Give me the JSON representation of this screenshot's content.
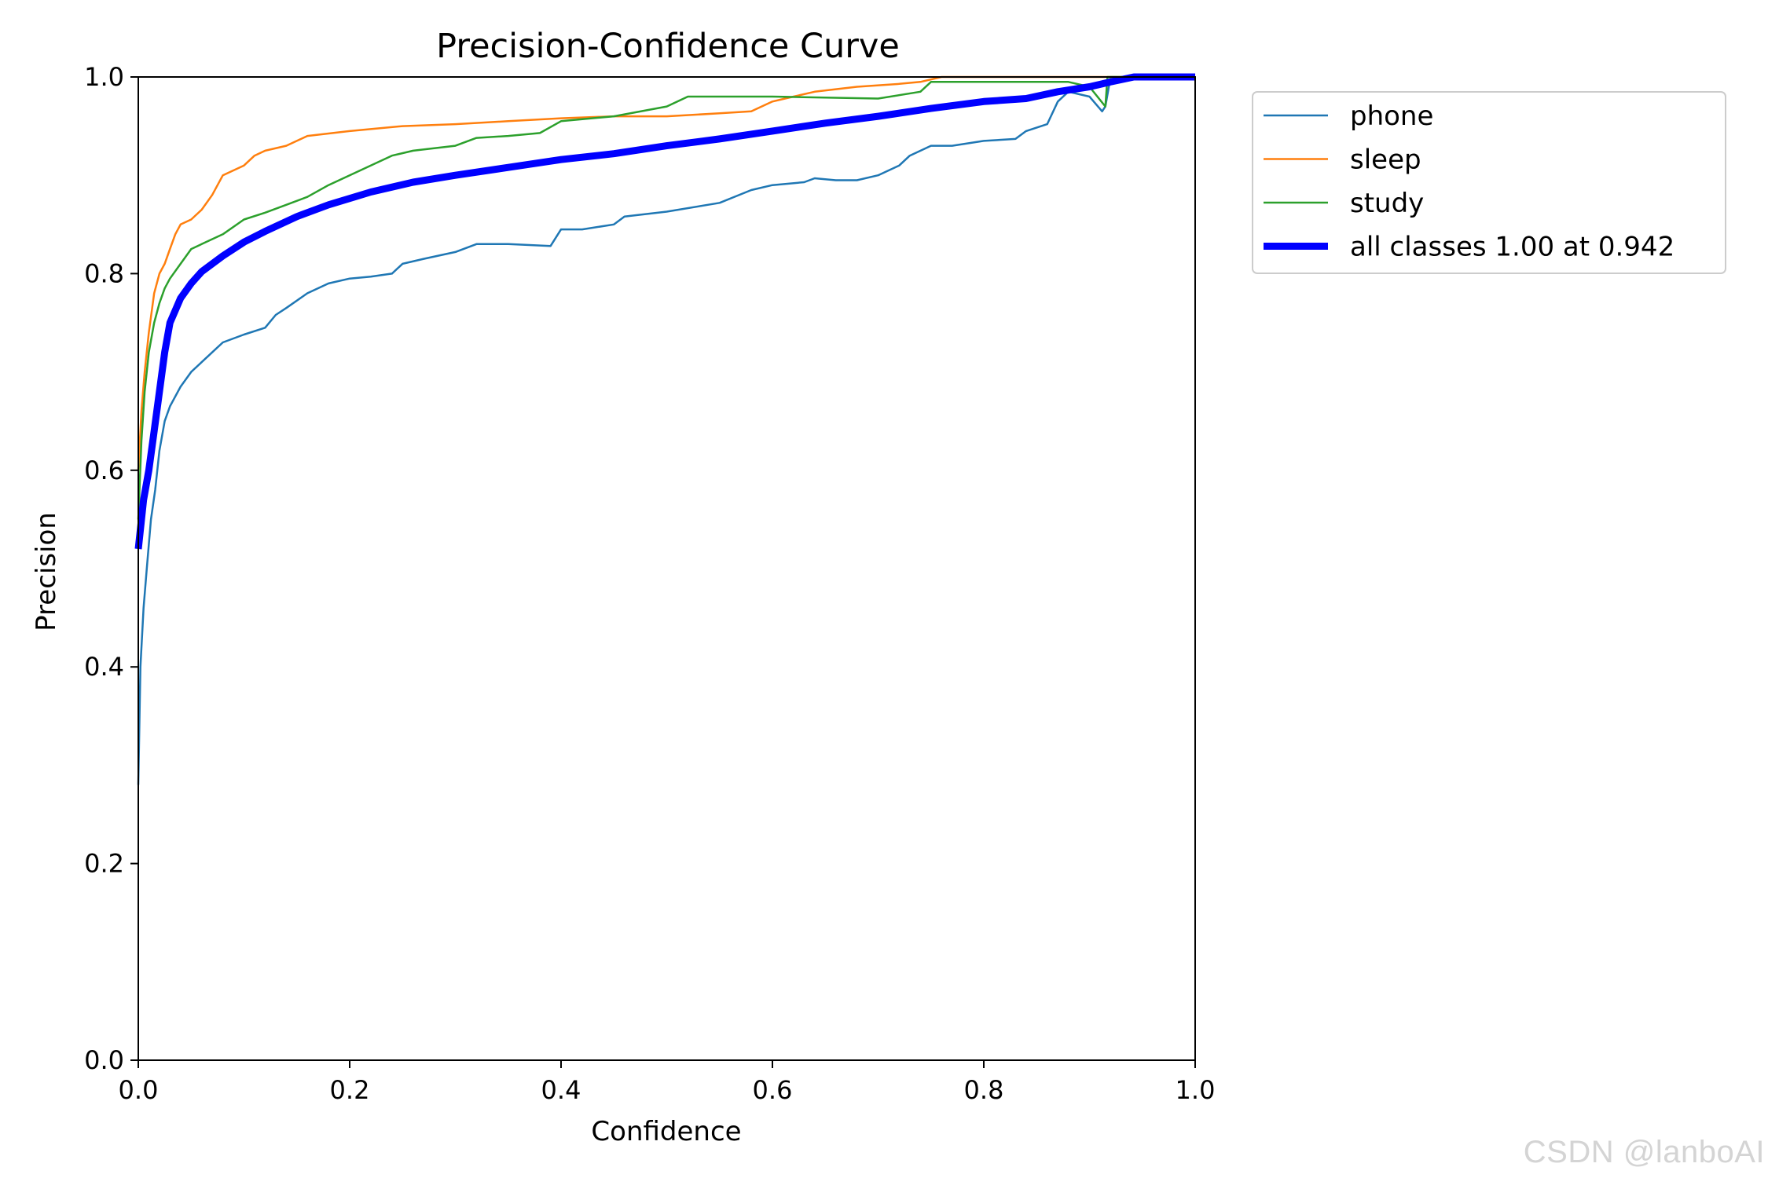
{
  "chart_data": {
    "type": "line",
    "title": "Precision-Confidence Curve",
    "xlabel": "Confidence",
    "ylabel": "Precision",
    "xlim": [
      0,
      1
    ],
    "ylim": [
      0,
      1
    ],
    "grid": false,
    "legend_position": "outside-top-right",
    "x_ticks": [
      0.0,
      0.2,
      0.4,
      0.6,
      0.8,
      1.0
    ],
    "x_tick_labels": [
      "0.0",
      "0.2",
      "0.4",
      "0.6",
      "0.8",
      "1.0"
    ],
    "y_ticks": [
      0.0,
      0.2,
      0.4,
      0.6,
      0.8,
      1.0
    ],
    "y_tick_labels": [
      "0.0",
      "0.2",
      "0.4",
      "0.6",
      "0.8",
      "1.0"
    ],
    "series": [
      {
        "name": "phone",
        "color": "#1f77b4",
        "weight": "thin",
        "points": [
          [
            0.0,
            0.28
          ],
          [
            0.002,
            0.4
          ],
          [
            0.005,
            0.46
          ],
          [
            0.008,
            0.5
          ],
          [
            0.012,
            0.55
          ],
          [
            0.016,
            0.58
          ],
          [
            0.02,
            0.62
          ],
          [
            0.025,
            0.65
          ],
          [
            0.03,
            0.665
          ],
          [
            0.04,
            0.685
          ],
          [
            0.05,
            0.7
          ],
          [
            0.06,
            0.71
          ],
          [
            0.07,
            0.72
          ],
          [
            0.08,
            0.73
          ],
          [
            0.1,
            0.738
          ],
          [
            0.12,
            0.745
          ],
          [
            0.13,
            0.758
          ],
          [
            0.14,
            0.765
          ],
          [
            0.16,
            0.78
          ],
          [
            0.18,
            0.79
          ],
          [
            0.2,
            0.795
          ],
          [
            0.22,
            0.797
          ],
          [
            0.24,
            0.8
          ],
          [
            0.25,
            0.81
          ],
          [
            0.27,
            0.815
          ],
          [
            0.3,
            0.822
          ],
          [
            0.32,
            0.83
          ],
          [
            0.35,
            0.83
          ],
          [
            0.39,
            0.828
          ],
          [
            0.4,
            0.845
          ],
          [
            0.42,
            0.845
          ],
          [
            0.45,
            0.85
          ],
          [
            0.46,
            0.858
          ],
          [
            0.5,
            0.863
          ],
          [
            0.55,
            0.872
          ],
          [
            0.58,
            0.885
          ],
          [
            0.6,
            0.89
          ],
          [
            0.63,
            0.893
          ],
          [
            0.64,
            0.897
          ],
          [
            0.66,
            0.895
          ],
          [
            0.68,
            0.895
          ],
          [
            0.7,
            0.9
          ],
          [
            0.72,
            0.91
          ],
          [
            0.73,
            0.92
          ],
          [
            0.75,
            0.93
          ],
          [
            0.77,
            0.93
          ],
          [
            0.8,
            0.935
          ],
          [
            0.83,
            0.937
          ],
          [
            0.84,
            0.945
          ],
          [
            0.86,
            0.952
          ],
          [
            0.87,
            0.975
          ],
          [
            0.88,
            0.985
          ],
          [
            0.9,
            0.98
          ],
          [
            0.912,
            0.965
          ],
          [
            0.915,
            0.97
          ],
          [
            0.92,
            1.0
          ],
          [
            1.0,
            1.0
          ]
        ]
      },
      {
        "name": "sleep",
        "color": "#ff7f0e",
        "weight": "thin",
        "points": [
          [
            0.0,
            0.6
          ],
          [
            0.003,
            0.66
          ],
          [
            0.006,
            0.7
          ],
          [
            0.01,
            0.74
          ],
          [
            0.015,
            0.78
          ],
          [
            0.02,
            0.8
          ],
          [
            0.025,
            0.81
          ],
          [
            0.03,
            0.825
          ],
          [
            0.035,
            0.84
          ],
          [
            0.04,
            0.85
          ],
          [
            0.05,
            0.855
          ],
          [
            0.06,
            0.865
          ],
          [
            0.07,
            0.88
          ],
          [
            0.08,
            0.9
          ],
          [
            0.1,
            0.91
          ],
          [
            0.11,
            0.92
          ],
          [
            0.12,
            0.925
          ],
          [
            0.14,
            0.93
          ],
          [
            0.16,
            0.94
          ],
          [
            0.2,
            0.945
          ],
          [
            0.25,
            0.95
          ],
          [
            0.3,
            0.952
          ],
          [
            0.35,
            0.955
          ],
          [
            0.4,
            0.958
          ],
          [
            0.45,
            0.96
          ],
          [
            0.5,
            0.96
          ],
          [
            0.55,
            0.963
          ],
          [
            0.58,
            0.965
          ],
          [
            0.6,
            0.975
          ],
          [
            0.62,
            0.98
          ],
          [
            0.64,
            0.985
          ],
          [
            0.68,
            0.99
          ],
          [
            0.72,
            0.993
          ],
          [
            0.74,
            0.995
          ],
          [
            0.76,
            1.0
          ],
          [
            1.0,
            1.0
          ]
        ]
      },
      {
        "name": "study",
        "color": "#2ca02c",
        "weight": "thin",
        "points": [
          [
            0.0,
            0.55
          ],
          [
            0.003,
            0.63
          ],
          [
            0.006,
            0.68
          ],
          [
            0.01,
            0.72
          ],
          [
            0.015,
            0.75
          ],
          [
            0.02,
            0.77
          ],
          [
            0.025,
            0.785
          ],
          [
            0.03,
            0.795
          ],
          [
            0.04,
            0.81
          ],
          [
            0.05,
            0.825
          ],
          [
            0.06,
            0.83
          ],
          [
            0.08,
            0.84
          ],
          [
            0.1,
            0.855
          ],
          [
            0.12,
            0.862
          ],
          [
            0.14,
            0.87
          ],
          [
            0.16,
            0.878
          ],
          [
            0.18,
            0.89
          ],
          [
            0.2,
            0.9
          ],
          [
            0.22,
            0.91
          ],
          [
            0.24,
            0.92
          ],
          [
            0.26,
            0.925
          ],
          [
            0.3,
            0.93
          ],
          [
            0.32,
            0.938
          ],
          [
            0.35,
            0.94
          ],
          [
            0.38,
            0.943
          ],
          [
            0.4,
            0.955
          ],
          [
            0.45,
            0.96
          ],
          [
            0.5,
            0.97
          ],
          [
            0.52,
            0.98
          ],
          [
            0.6,
            0.98
          ],
          [
            0.7,
            0.978
          ],
          [
            0.74,
            0.985
          ],
          [
            0.75,
            0.995
          ],
          [
            0.88,
            0.995
          ],
          [
            0.9,
            0.99
          ],
          [
            0.915,
            0.97
          ],
          [
            0.917,
            1.0
          ],
          [
            1.0,
            1.0
          ]
        ]
      },
      {
        "name": "all classes 1.00 at 0.942",
        "color": "#0000ff",
        "weight": "thick",
        "points": [
          [
            0.0,
            0.52
          ],
          [
            0.005,
            0.57
          ],
          [
            0.01,
            0.6
          ],
          [
            0.015,
            0.64
          ],
          [
            0.02,
            0.68
          ],
          [
            0.025,
            0.72
          ],
          [
            0.03,
            0.75
          ],
          [
            0.04,
            0.775
          ],
          [
            0.05,
            0.79
          ],
          [
            0.06,
            0.802
          ],
          [
            0.08,
            0.818
          ],
          [
            0.1,
            0.832
          ],
          [
            0.12,
            0.843
          ],
          [
            0.15,
            0.858
          ],
          [
            0.18,
            0.87
          ],
          [
            0.22,
            0.883
          ],
          [
            0.26,
            0.893
          ],
          [
            0.3,
            0.9
          ],
          [
            0.35,
            0.908
          ],
          [
            0.4,
            0.916
          ],
          [
            0.45,
            0.922
          ],
          [
            0.5,
            0.93
          ],
          [
            0.55,
            0.937
          ],
          [
            0.6,
            0.945
          ],
          [
            0.65,
            0.953
          ],
          [
            0.7,
            0.96
          ],
          [
            0.75,
            0.968
          ],
          [
            0.8,
            0.975
          ],
          [
            0.84,
            0.978
          ],
          [
            0.87,
            0.985
          ],
          [
            0.9,
            0.99
          ],
          [
            0.92,
            0.995
          ],
          [
            0.942,
            1.0
          ],
          [
            1.0,
            1.0
          ]
        ]
      }
    ]
  },
  "watermark": "CSDN @lanboAI"
}
